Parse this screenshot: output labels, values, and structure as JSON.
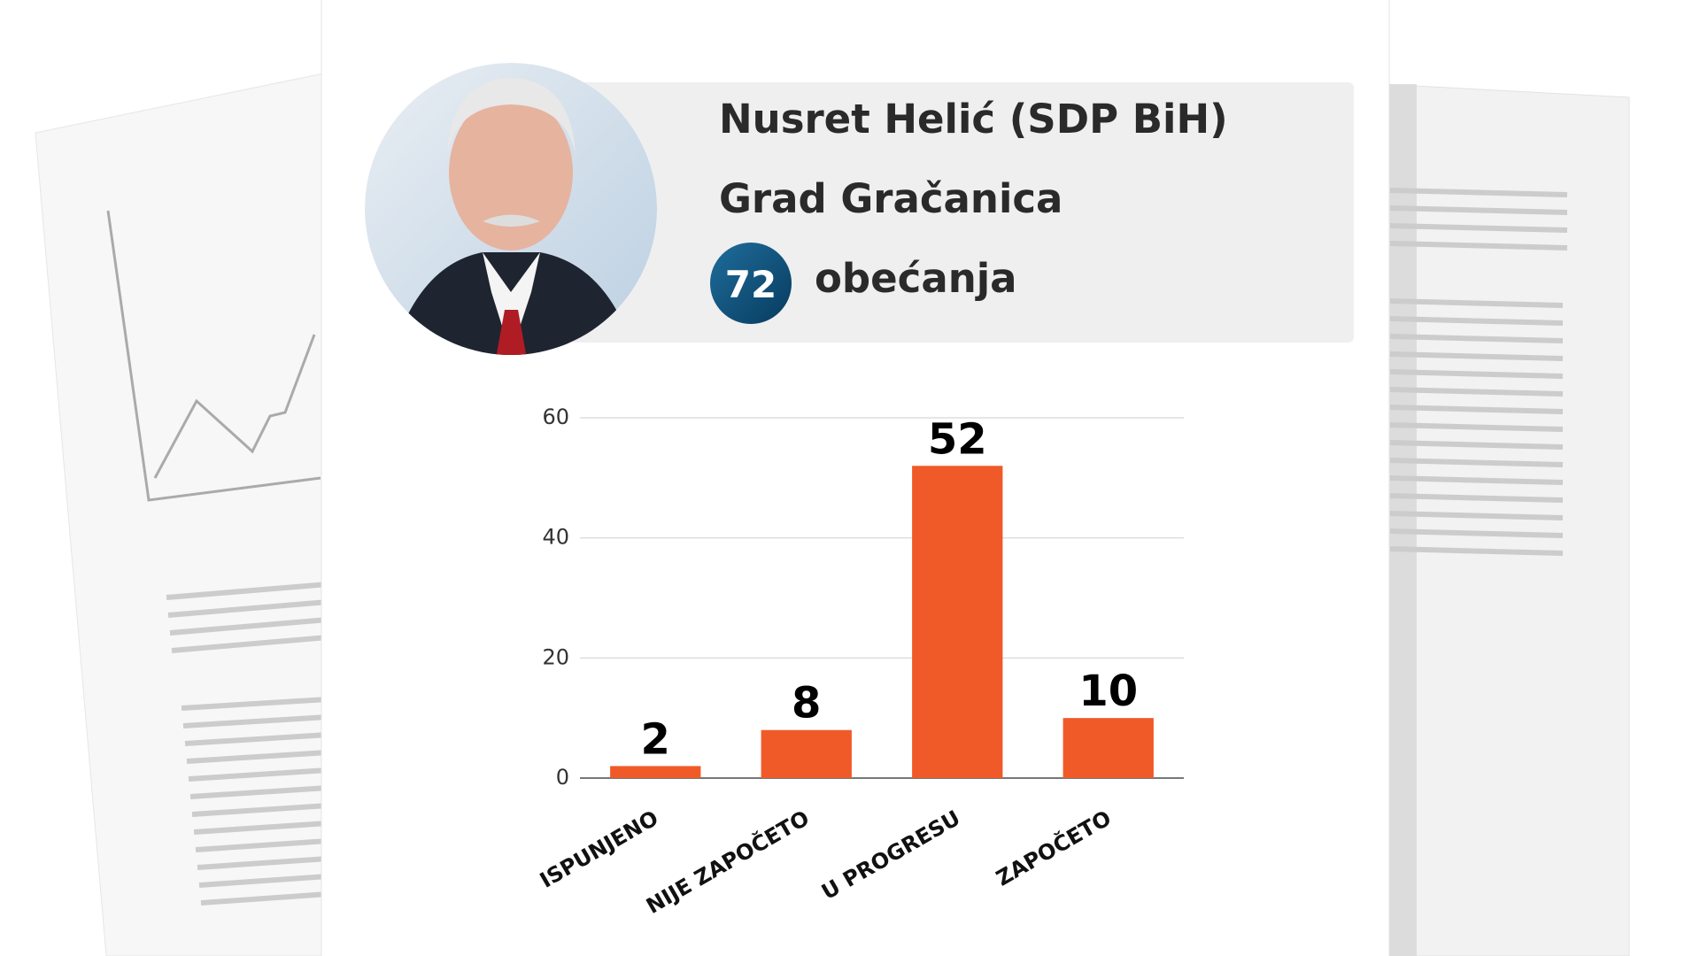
{
  "header": {
    "name": "Nusret Helić (SDP BiH)",
    "city": "Grad Gračanica",
    "promise_count": 72,
    "promise_label": "obećanja"
  },
  "chart_data": {
    "type": "bar",
    "categories": [
      "ISPUNJENO",
      "NIJE ZAPOČETO",
      "U PROGRESU",
      "ZAPOČETO"
    ],
    "values": [
      2,
      8,
      52,
      10
    ],
    "color": "#f05a28",
    "ylim": [
      0,
      60
    ],
    "yticks": [
      0,
      20,
      40,
      60
    ],
    "grid": true
  }
}
